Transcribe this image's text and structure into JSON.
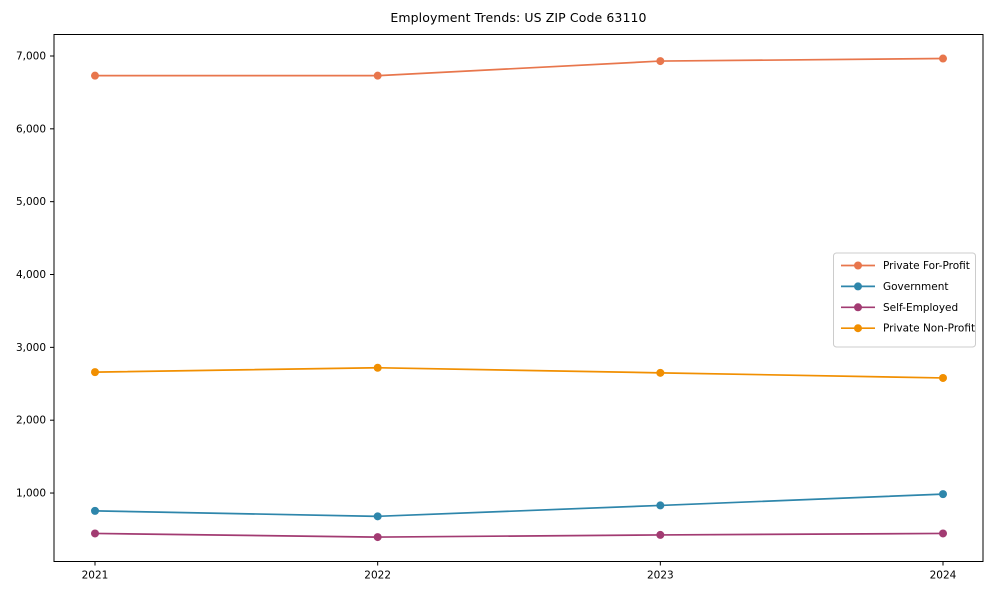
{
  "chart_data": {
    "type": "line",
    "title": "Employment Trends: US ZIP Code 63110",
    "xlabel": "",
    "ylabel": "",
    "x_labels": [
      "2021",
      "2022",
      "2023",
      "2024"
    ],
    "series": [
      {
        "name": "Private For-Profit",
        "color": "#E8764C",
        "values": [
          6730,
          6730,
          6930,
          6965
        ]
      },
      {
        "name": "Government",
        "color": "#2E86AB",
        "values": [
          755,
          680,
          830,
          985
        ]
      },
      {
        "name": "Self-Employed",
        "color": "#A23B72",
        "values": [
          445,
          395,
          425,
          445
        ]
      },
      {
        "name": "Private Non-Profit",
        "color": "#F18F01",
        "values": [
          2660,
          2720,
          2650,
          2580
        ]
      }
    ],
    "ylim": [
      60,
      7295
    ],
    "yticks": [
      1000,
      2000,
      3000,
      4000,
      5000,
      6000,
      7000
    ],
    "ytick_labels": [
      "1,000",
      "2,000",
      "3,000",
      "4,000",
      "5,000",
      "6,000",
      "7,000"
    ],
    "grid": false,
    "legend": {
      "position": "center right",
      "border_color": "#cccccc",
      "background": "#ffffff"
    },
    "axis_color": "#000000",
    "text_color": "#000000"
  }
}
